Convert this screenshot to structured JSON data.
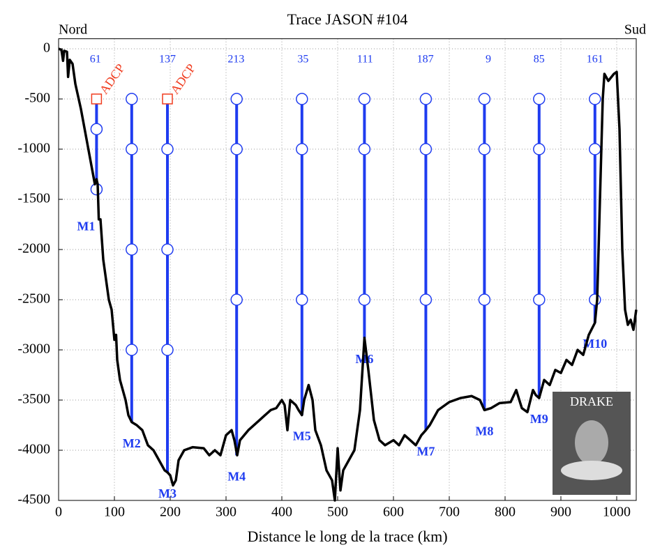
{
  "chart_data": {
    "type": "line",
    "title": "Trace JASON #104",
    "xlabel": "Distance le long de la trace (km)",
    "left_label": "Nord",
    "right_label": "Sud",
    "portrait_label": "DRAKE",
    "adcp_label": "ADCP",
    "xlim": [
      0,
      1035
    ],
    "ylim": [
      -4500,
      100
    ],
    "xticks": [
      0,
      100,
      200,
      300,
      400,
      500,
      600,
      700,
      800,
      900,
      1000
    ],
    "yticks": [
      0,
      -500,
      -1000,
      -1500,
      -2000,
      -2500,
      -3000,
      -3500,
      -4000,
      -4500
    ],
    "grid": true,
    "x": [
      0,
      5,
      8,
      10,
      15,
      17,
      20,
      25,
      30,
      40,
      50,
      60,
      65,
      68,
      70,
      72,
      75,
      80,
      90,
      95,
      100,
      103,
      105,
      110,
      120,
      125,
      131,
      140,
      150,
      160,
      170,
      180,
      190,
      195,
      200,
      205,
      210,
      215,
      225,
      240,
      260,
      270,
      280,
      290,
      300,
      310,
      315,
      320,
      325,
      340,
      360,
      370,
      380,
      390,
      400,
      405,
      410,
      415,
      425,
      430,
      436,
      440,
      448,
      455,
      460,
      470,
      480,
      490,
      495,
      500,
      505,
      510,
      520,
      530,
      540,
      548,
      555,
      565,
      575,
      585,
      600,
      610,
      620,
      630,
      640,
      650,
      658,
      665,
      680,
      700,
      720,
      740,
      755,
      763,
      775,
      790,
      810,
      820,
      830,
      840,
      850,
      855,
      861,
      870,
      880,
      890,
      900,
      910,
      920,
      930,
      940,
      950,
      961,
      965,
      970,
      975,
      978,
      985,
      995,
      1000,
      1005,
      1010,
      1015,
      1020,
      1025,
      1030,
      1035
    ],
    "series": [
      {
        "color": "#000000",
        "values": [
          0,
          -10,
          -120,
          -20,
          -30,
          -280,
          -110,
          -150,
          -350,
          -600,
          -900,
          -1200,
          -1350,
          -1300,
          -1350,
          -1700,
          -1700,
          -2100,
          -2500,
          -2600,
          -2900,
          -2850,
          -3100,
          -3300,
          -3500,
          -3650,
          -3720,
          -3750,
          -3800,
          -3950,
          -4000,
          -4100,
          -4200,
          -4220,
          -4250,
          -4350,
          -4300,
          -4100,
          -4000,
          -3970,
          -3980,
          -4050,
          -4000,
          -4050,
          -3850,
          -3800,
          -3900,
          -4050,
          -3900,
          -3800,
          -3700,
          -3650,
          -3600,
          -3580,
          -3500,
          -3550,
          -3800,
          -3500,
          -3550,
          -3600,
          -3650,
          -3500,
          -3350,
          -3500,
          -3800,
          -3950,
          -4200,
          -4300,
          -4500,
          -3980,
          -4400,
          -4200,
          -4100,
          -4000,
          -3600,
          -2880,
          -3200,
          -3700,
          -3900,
          -3950,
          -3900,
          -3950,
          -3850,
          -3900,
          -3950,
          -3850,
          -3800,
          -3750,
          -3600,
          -3520,
          -3480,
          -3460,
          -3500,
          -3600,
          -3580,
          -3530,
          -3520,
          -3400,
          -3580,
          -3620,
          -3400,
          -3450,
          -3480,
          -3300,
          -3350,
          -3200,
          -3230,
          -3100,
          -3150,
          -3000,
          -3050,
          -2850,
          -2730,
          -2500,
          -1500,
          -500,
          -250,
          -320,
          -250,
          -230,
          -800,
          -2000,
          -2600,
          -2750,
          -2700,
          -2800,
          -2600
        ]
      }
    ],
    "mooring_color": "#1f3cf0",
    "adcp_color": "#f03c1f",
    "moorings": [
      {
        "label": "M1",
        "x": 68,
        "top": -500,
        "bottom": -1400,
        "adcp": [
          -500
        ],
        "instruments": [
          -800,
          -1400
        ]
      },
      {
        "label": "M2",
        "x": 131,
        "top": -500,
        "bottom": -3720,
        "adcp": [],
        "instruments": [
          -500,
          -1000,
          -2000,
          -3000
        ]
      },
      {
        "label": "M3",
        "x": 195,
        "top": -500,
        "bottom": -4220,
        "adcp": [
          -500
        ],
        "instruments": [
          -1000,
          -2000,
          -3000
        ]
      },
      {
        "label": "M4",
        "x": 319,
        "top": -500,
        "bottom": -4050,
        "adcp": [],
        "instruments": [
          -500,
          -1000,
          -2500
        ]
      },
      {
        "label": "M5",
        "x": 436,
        "top": -500,
        "bottom": -3650,
        "adcp": [],
        "instruments": [
          -500,
          -1000,
          -2500
        ]
      },
      {
        "label": "M6",
        "x": 548,
        "top": -500,
        "bottom": -2880,
        "adcp": [],
        "instruments": [
          -500,
          -1000,
          -2500
        ]
      },
      {
        "label": "M7",
        "x": 658,
        "top": -500,
        "bottom": -3800,
        "adcp": [],
        "instruments": [
          -500,
          -1000,
          -2500
        ]
      },
      {
        "label": "M8",
        "x": 763,
        "top": -500,
        "bottom": -3600,
        "adcp": [],
        "instruments": [
          -500,
          -1000,
          -2500
        ]
      },
      {
        "label": "M9",
        "x": 861,
        "top": -500,
        "bottom": -3480,
        "adcp": [],
        "instruments": [
          -500,
          -1000,
          -2500
        ]
      },
      {
        "label": "M10",
        "x": 961,
        "top": -500,
        "bottom": -2730,
        "adcp": [],
        "instruments": [
          -500,
          -1000,
          -2500
        ]
      }
    ],
    "tracks": [
      {
        "number": 61,
        "x": 66
      },
      {
        "number": 137,
        "x": 195
      },
      {
        "number": 213,
        "x": 318
      },
      {
        "number": 35,
        "x": 438
      },
      {
        "number": 111,
        "x": 549
      },
      {
        "number": 187,
        "x": 657
      },
      {
        "number": 9,
        "x": 770
      },
      {
        "number": 85,
        "x": 861
      },
      {
        "number": 161,
        "x": 961
      }
    ]
  }
}
